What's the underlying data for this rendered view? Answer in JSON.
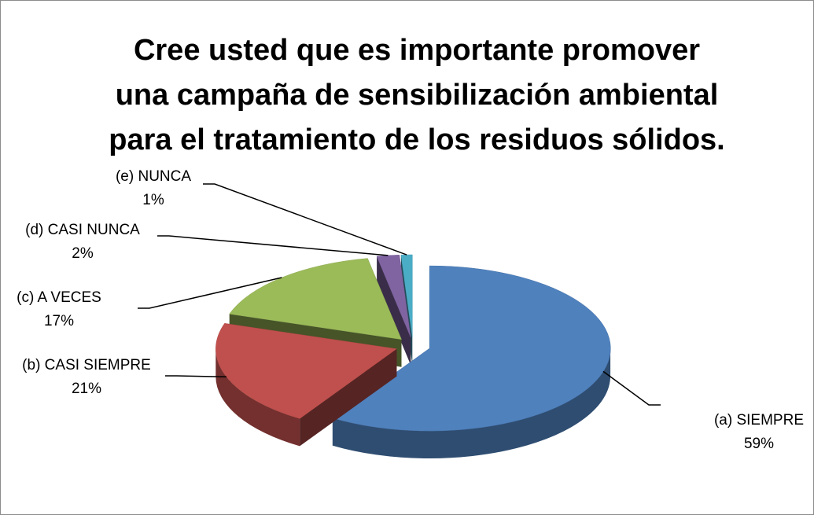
{
  "chart_data": {
    "type": "pie",
    "title": "Cree usted que es importante promover una campaña de sensibilización ambiental para el tratamiento de los residuos sólidos.",
    "categories": [
      "(a) SIEMPRE",
      "(b) CASI SIEMPRE",
      "(c) A VECES",
      "(d) CASI NUNCA",
      "(e) NUNCA"
    ],
    "values": [
      59,
      21,
      17,
      2,
      1
    ],
    "value_labels": [
      "59%",
      "21%",
      "17%",
      "2%",
      "1%"
    ],
    "colors": [
      "#4f81bd",
      "#c0504d",
      "#9bbb59",
      "#8064a2",
      "#4bacc6"
    ],
    "exploded": true,
    "three_d": true
  }
}
